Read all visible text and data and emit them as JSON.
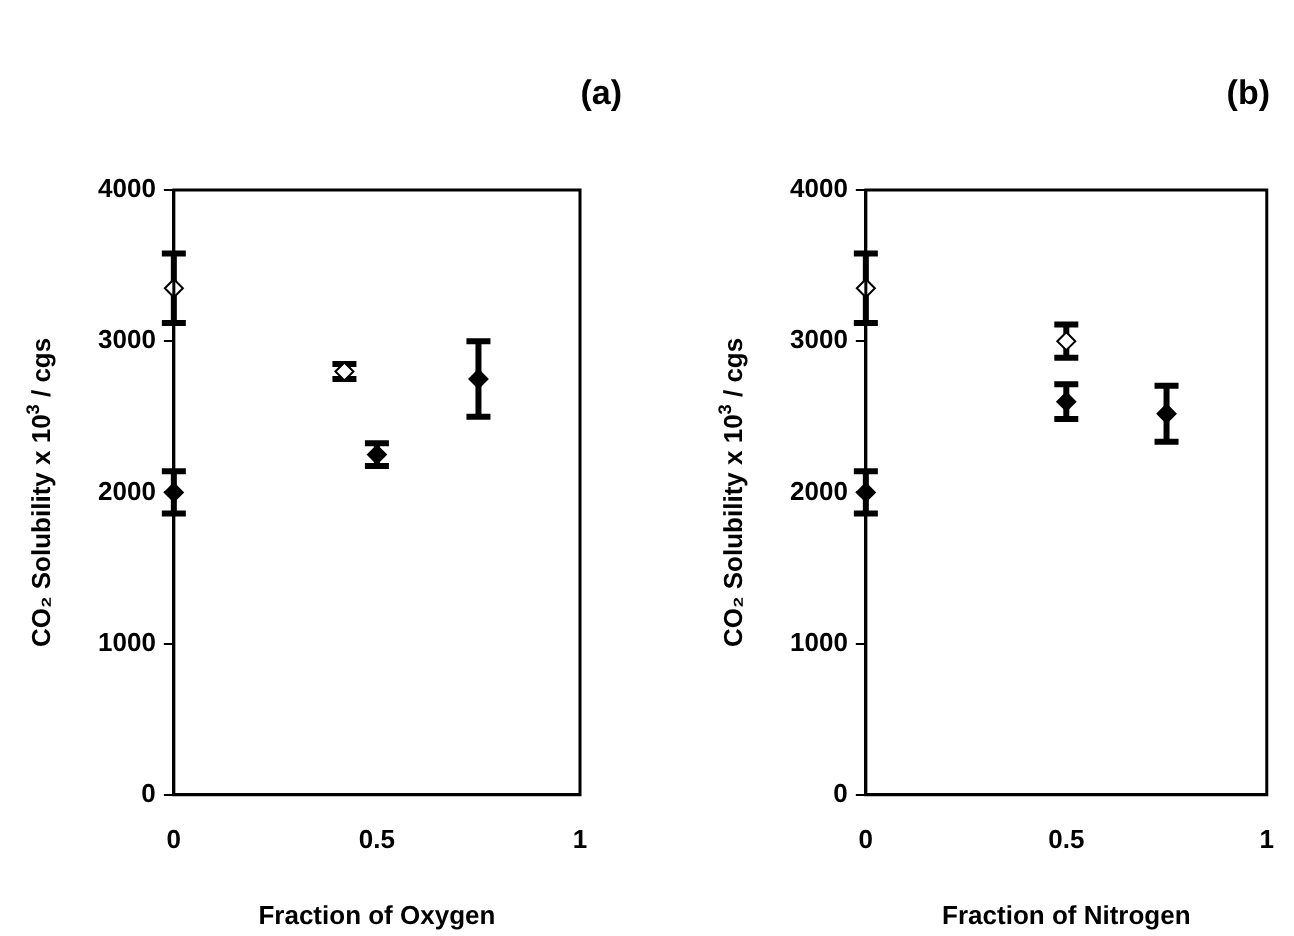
{
  "chart_data": [
    {
      "type": "scatter",
      "title": "(a)",
      "xlabel": "Fraction of Oxygen",
      "ylabel": "CO₂ Solubility x 10$^{3}$ / cgs",
      "xlim": [
        0,
        1
      ],
      "xticks": [
        0,
        0.5,
        1
      ],
      "ylim": [
        0,
        4000
      ],
      "yticks": [
        0,
        1000,
        2000,
        3000,
        4000
      ],
      "grid": false,
      "legend": false,
      "marker": "diamond",
      "series": [
        {
          "color": "#ffffff",
          "x": [
            0,
            0.42
          ],
          "values": [
            3350,
            2800
          ],
          "errors": [
            230,
            50
          ]
        },
        {
          "color": "#000000",
          "x": [
            0,
            0.5,
            0.75
          ],
          "values": [
            2000,
            2250,
            2750
          ],
          "errors": [
            140,
            75,
            250
          ]
        }
      ]
    },
    {
      "type": "scatter",
      "title": "(b)",
      "xlabel": "Fraction of Nitrogen",
      "ylabel": "CO₂ Solubility x 10$^{3}$ / cgs",
      "xlim": [
        0,
        1
      ],
      "xticks": [
        0,
        0.5,
        1
      ],
      "ylim": [
        0,
        4000
      ],
      "yticks": [
        0,
        1000,
        2000,
        3000,
        4000
      ],
      "grid": false,
      "legend": false,
      "marker": "diamond",
      "series": [
        {
          "color": "#ffffff",
          "x": [
            0,
            0.5
          ],
          "values": [
            3350,
            3000
          ],
          "errors": [
            230,
            110
          ]
        },
        {
          "color": "#000000",
          "x": [
            0,
            0.5,
            0.75
          ],
          "values": [
            2000,
            2600,
            2520
          ],
          "errors": [
            140,
            115,
            185
          ]
        }
      ]
    }
  ]
}
